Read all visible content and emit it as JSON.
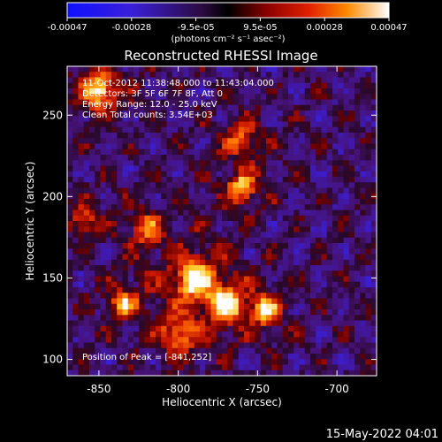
{
  "colorbar": {
    "ticks": [
      "-0.00047",
      "-0.00028",
      "-9.5e-05",
      "9.5e-05",
      "0.00028",
      "0.00047"
    ],
    "units_label": "(photons cm⁻² s⁻¹ asec⁻²)",
    "range": [
      -0.00047,
      0.00047
    ]
  },
  "chart_data": {
    "type": "heatmap",
    "title": "Reconstructed RHESSI Image",
    "xlabel": "Heliocentric X (arcsec)",
    "ylabel": "Heliocentric Y (arcsec)",
    "xlim": [
      -870,
      -675
    ],
    "ylim": [
      90,
      280
    ],
    "x_ticks": [
      -850,
      -800,
      -750,
      -700
    ],
    "y_ticks": [
      100,
      150,
      200,
      250
    ],
    "x_tick_labels": [
      "-850",
      "-800",
      "-750",
      "-700"
    ],
    "y_tick_labels": [
      "100",
      "150",
      "200",
      "250"
    ],
    "peak_position": [
      -841,
      252
    ],
    "bright_sources": [
      {
        "x": -850,
        "y": 265,
        "amp": 1.0,
        "w": 12
      },
      {
        "x": -760,
        "y": 205,
        "amp": 0.85,
        "w": 10
      },
      {
        "x": -820,
        "y": 180,
        "amp": 0.6,
        "w": 12
      },
      {
        "x": -790,
        "y": 150,
        "amp": 0.9,
        "w": 16
      },
      {
        "x": -770,
        "y": 135,
        "amp": 0.95,
        "w": 12
      },
      {
        "x": -745,
        "y": 130,
        "amp": 0.9,
        "w": 10
      },
      {
        "x": -835,
        "y": 135,
        "amp": 0.75,
        "w": 10
      },
      {
        "x": -800,
        "y": 115,
        "amp": 0.6,
        "w": 14
      },
      {
        "x": -760,
        "y": 235,
        "amp": 0.55,
        "w": 12
      },
      {
        "x": -860,
        "y": 185,
        "amp": 0.6,
        "w": 10
      }
    ]
  },
  "annotations": {
    "time_range": "11-Oct-2012 11:38:48.000 to 11:43:04.000",
    "detectors": "Detectors: 3F 5F 6F 7F 8F, Att 0",
    "energy": "Energy Range: 12.0 - 25.0 keV",
    "clean": "Clean   Total counts: 3.54E+03",
    "peak_label": "Position of Peak = [-841,252]"
  },
  "footer": {
    "timestamp": "15-May-2022 04:01"
  }
}
